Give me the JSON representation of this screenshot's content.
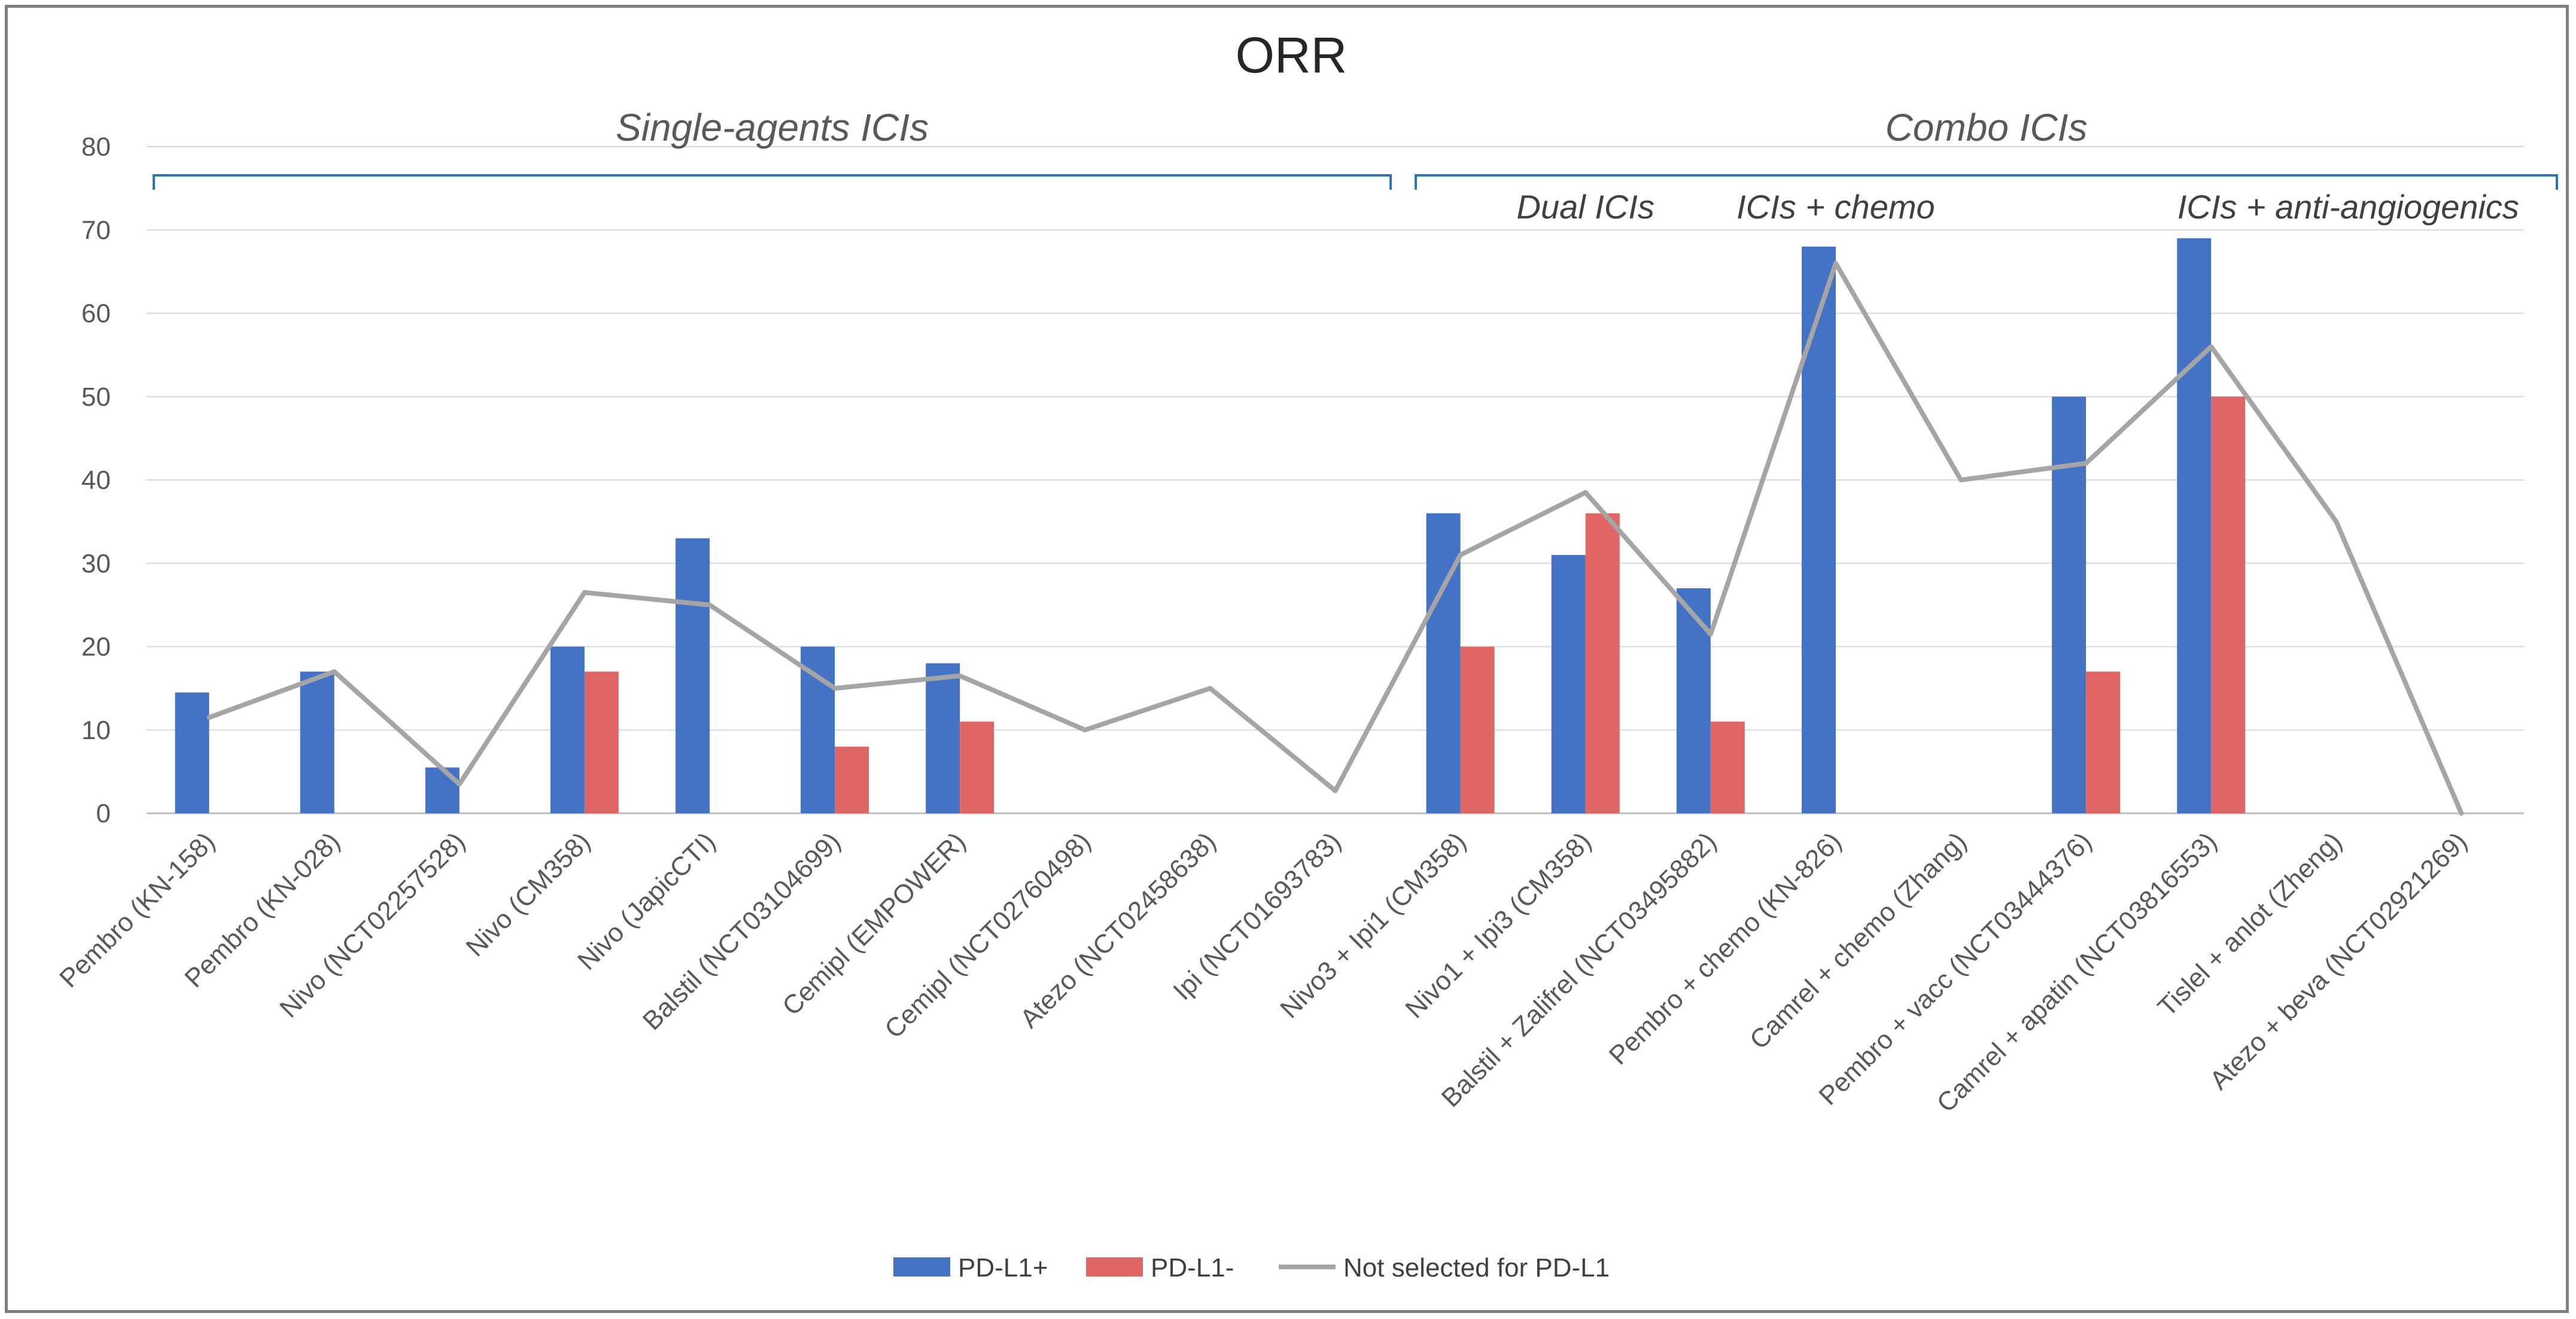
{
  "chart_data": {
    "type": "bar",
    "title": "ORR",
    "xlabel": "",
    "ylabel": "",
    "ylim": [
      0,
      80
    ],
    "yticks": [
      0,
      10,
      20,
      30,
      40,
      50,
      60,
      70,
      80
    ],
    "grid": true,
    "legend_position": "bottom",
    "categories": [
      "Pembro (KN-158)",
      "Pembro (KN-028)",
      "Nivo (NCT02257528)",
      "Nivo (CM358)",
      "Nivo (JapicCTI)",
      "Balstil (NCT03104699)",
      "Cemipl (EMPOWER)",
      "Cemipl (NCT02760498)",
      "Atezo (NCT02458638)",
      "Ipi (NCT01693783)",
      "Nivo3 + Ipi1 (CM358)",
      "Nivo1 + Ipi3 (CM358)",
      "Balstil + Zalifrel (NCT03495882)",
      "Pembro + chemo (KN-826)",
      "Camrel + chemo (Zhang)",
      "Pembro + vacc (NCT03444376)",
      "Camrel + apatin (NCT03816553)",
      "Tislel + anlot (Zheng)",
      "Atezo + beva (NCT02921269)"
    ],
    "series": [
      {
        "name": "PD-L1+",
        "kind": "bar",
        "color": "#4472c4",
        "values": [
          14.5,
          17,
          5.5,
          20,
          33,
          20,
          18,
          null,
          null,
          null,
          36,
          31,
          27,
          68,
          null,
          50,
          69,
          null,
          null
        ]
      },
      {
        "name": "PD-L1-",
        "kind": "bar",
        "color": "#e06666",
        "values": [
          null,
          null,
          null,
          17,
          null,
          8,
          11,
          null,
          null,
          null,
          20,
          36,
          11,
          null,
          null,
          17,
          50,
          null,
          null
        ]
      },
      {
        "name": "Not selected for PD-L1",
        "kind": "line",
        "color": "#a5a5a5",
        "values": [
          11.5,
          17,
          3.5,
          26.5,
          25,
          15,
          16.5,
          10,
          15,
          2.7,
          31,
          38.5,
          21.5,
          66,
          40,
          42,
          56,
          35,
          0
        ]
      }
    ],
    "groups": [
      {
        "label": "Single-agents ICIs",
        "from": 0,
        "to": 9
      },
      {
        "label": "Combo ICIs",
        "from": 10,
        "to": 18
      }
    ],
    "sublabels": [
      {
        "label": "Dual ICIs",
        "at": 11
      },
      {
        "label": "ICIs + chemo",
        "at": 13
      },
      {
        "label": "ICIs + anti-angiogenics",
        "at": 17
      }
    ]
  }
}
